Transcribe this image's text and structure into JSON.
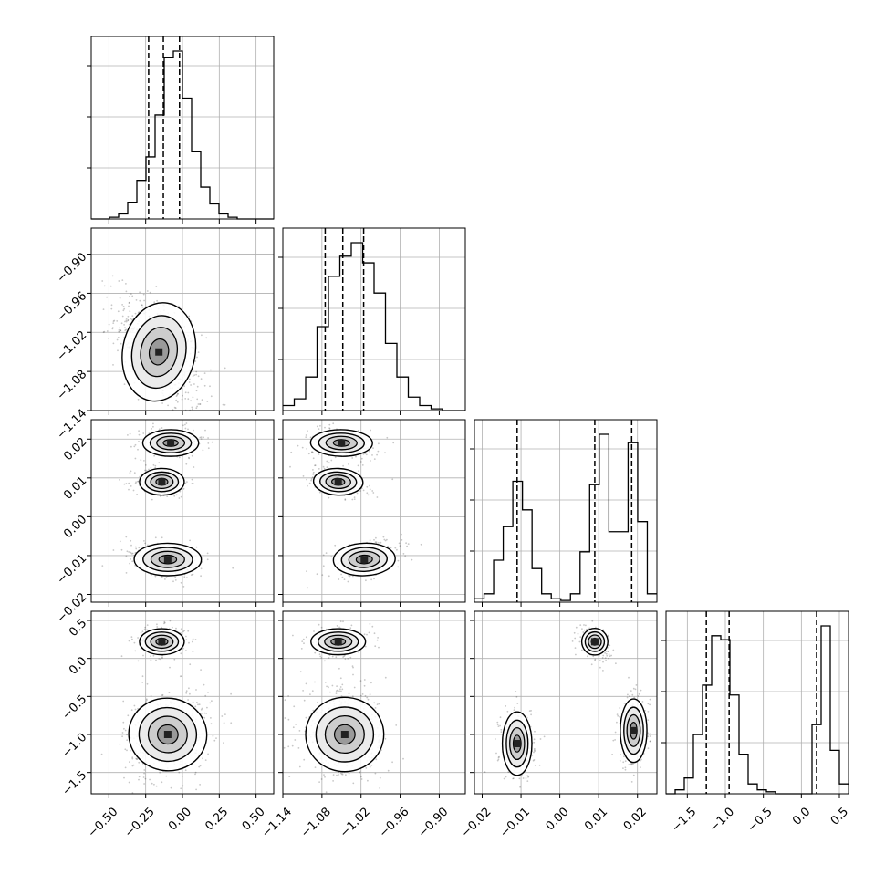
{
  "chart_data": {
    "type": "corner",
    "grid": true,
    "parameters": [
      {
        "range": [
          -0.62,
          0.62
        ],
        "ticks": [
          -0.5,
          -0.25,
          0.0,
          0.25,
          0.5
        ],
        "tick_labels": [
          "−0.50",
          "−0.25",
          "0.00",
          "0.25",
          "0.50"
        ]
      },
      {
        "range": [
          -1.14,
          -0.86
        ],
        "ticks": [
          -1.14,
          -1.08,
          -1.02,
          -0.96,
          -0.9
        ],
        "tick_labels": [
          "−1.14",
          "−1.08",
          "−1.02",
          "−0.96",
          "−0.90"
        ]
      },
      {
        "range": [
          -0.022,
          0.025
        ],
        "ticks": [
          -0.02,
          -0.01,
          0.0,
          0.01,
          0.02
        ],
        "tick_labels": [
          "−0.02",
          "−0.01",
          "0.00",
          "0.01",
          "0.02"
        ]
      },
      {
        "range": [
          -1.78,
          0.62
        ],
        "ticks": [
          -1.5,
          -1.0,
          -0.5,
          0.0,
          0.5
        ],
        "tick_labels": [
          "−1.5",
          "−1.0",
          "−0.5",
          "0.0",
          "0.5"
        ]
      }
    ],
    "histograms": [
      {
        "param": 0,
        "edges_from": -0.62,
        "edges_to": 0.62,
        "counts": [
          0,
          0,
          1,
          3,
          10,
          23,
          37,
          62,
          96,
          100,
          72,
          40,
          19,
          9,
          3,
          1,
          0,
          0,
          0,
          0
        ],
        "quantiles": [
          -0.23,
          -0.13,
          -0.02
        ]
      },
      {
        "param": 1,
        "edges_from": -1.14,
        "edges_to": -0.86,
        "counts": [
          3,
          7,
          20,
          50,
          80,
          92,
          100,
          88,
          70,
          40,
          20,
          8,
          3,
          1,
          0,
          0
        ],
        "quantiles": [
          -1.075,
          -1.048,
          -1.016
        ]
      },
      {
        "param": 2,
        "edges_from": -0.022,
        "edges_to": 0.025,
        "counts": [
          2,
          5,
          25,
          45,
          72,
          55,
          20,
          5,
          2,
          1,
          5,
          30,
          70,
          100,
          42,
          42,
          95,
          48,
          5
        ],
        "quantiles": [
          -0.011,
          0.009,
          0.0185
        ]
      },
      {
        "param": 3,
        "edges_from": -1.78,
        "edges_to": 0.62,
        "counts": [
          0,
          2,
          8,
          30,
          55,
          80,
          78,
          50,
          20,
          5,
          2,
          1,
          0,
          0,
          0,
          0,
          35,
          85,
          22,
          5
        ],
        "quantiles": [
          -1.25,
          -0.95,
          0.2
        ]
      }
    ],
    "scatter_panels": [
      {
        "x": 0,
        "y": 1,
        "modes": [
          {
            "cx": -0.16,
            "cy": -1.05,
            "sx": 0.13,
            "sy": 0.04,
            "rho": -0.55,
            "w": 1
          }
        ]
      },
      {
        "x": 0,
        "y": 2,
        "modes": [
          {
            "cx": -0.08,
            "cy": 0.019,
            "sx": 0.1,
            "sy": 0.0018,
            "rho": 0,
            "w": 0.34
          },
          {
            "cx": -0.14,
            "cy": 0.009,
            "sx": 0.08,
            "sy": 0.0018,
            "rho": 0,
            "w": 0.33
          },
          {
            "cx": -0.1,
            "cy": -0.011,
            "sx": 0.12,
            "sy": 0.0022,
            "rho": -0.4,
            "w": 0.33
          }
        ]
      },
      {
        "x": 0,
        "y": 3,
        "modes": [
          {
            "cx": -0.14,
            "cy": 0.22,
            "sx": 0.08,
            "sy": 0.09,
            "rho": 0,
            "w": 0.33
          },
          {
            "cx": -0.1,
            "cy": -1.0,
            "sx": 0.13,
            "sy": 0.27,
            "rho": 0.2,
            "w": 0.67
          }
        ]
      },
      {
        "x": 1,
        "y": 2,
        "modes": [
          {
            "cx": -1.05,
            "cy": 0.019,
            "sx": 0.025,
            "sy": 0.0018,
            "rho": -0.2,
            "w": 0.34
          },
          {
            "cx": -1.055,
            "cy": 0.009,
            "sx": 0.02,
            "sy": 0.0018,
            "rho": -0.45,
            "w": 0.33
          },
          {
            "cx": -1.015,
            "cy": -0.011,
            "sx": 0.025,
            "sy": 0.0022,
            "rho": 0.45,
            "w": 0.33
          }
        ]
      },
      {
        "x": 1,
        "y": 3,
        "modes": [
          {
            "cx": -1.055,
            "cy": 0.22,
            "sx": 0.022,
            "sy": 0.09,
            "rho": 0,
            "w": 0.33
          },
          {
            "cx": -1.045,
            "cy": -1.0,
            "sx": 0.03,
            "sy": 0.27,
            "rho": -0.2,
            "w": 0.67
          }
        ]
      },
      {
        "x": 2,
        "y": 3,
        "modes": [
          {
            "cx": 0.009,
            "cy": 0.22,
            "sx": 0.0018,
            "sy": 0.09,
            "rho": -0.3,
            "w": 0.33
          },
          {
            "cx": -0.011,
            "cy": -1.12,
            "sx": 0.002,
            "sy": 0.22,
            "rho": 0,
            "w": 0.34
          },
          {
            "cx": 0.019,
            "cy": -0.95,
            "sx": 0.0018,
            "sy": 0.22,
            "rho": 0,
            "w": 0.33
          }
        ]
      }
    ]
  }
}
